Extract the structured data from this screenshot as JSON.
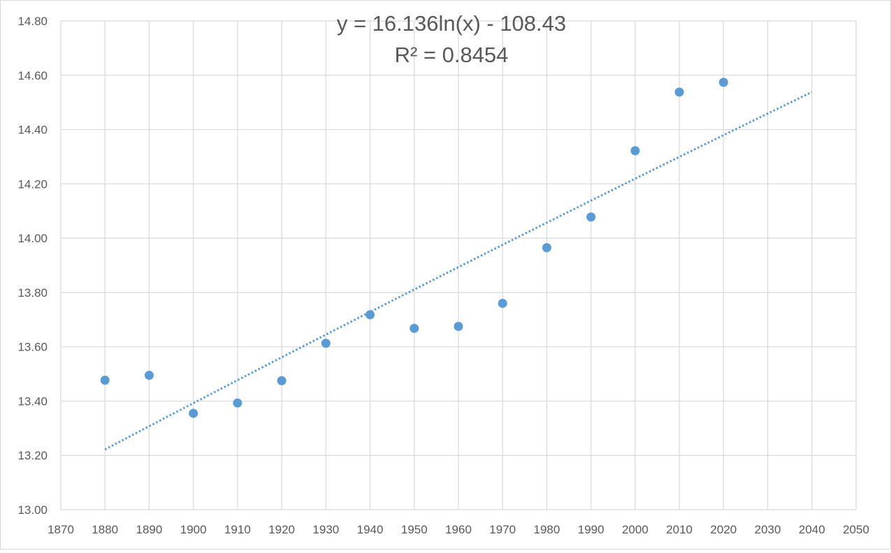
{
  "chart_data": {
    "type": "scatter",
    "title": "",
    "xlabel": "",
    "ylabel": "",
    "xlim": [
      1870,
      2050
    ],
    "ylim": [
      13.0,
      14.8
    ],
    "x_ticks": [
      1870,
      1880,
      1890,
      1900,
      1910,
      1920,
      1930,
      1940,
      1950,
      1960,
      1970,
      1980,
      1990,
      2000,
      2010,
      2020,
      2030,
      2040,
      2050
    ],
    "y_ticks": [
      13.0,
      13.2,
      13.4,
      13.6,
      13.8,
      14.0,
      14.2,
      14.4,
      14.6,
      14.8
    ],
    "y_tick_labels": [
      "13.00",
      "13.20",
      "13.40",
      "13.60",
      "13.80",
      "14.00",
      "14.20",
      "14.40",
      "14.60",
      "14.80"
    ],
    "grid": true,
    "series": [
      {
        "color": "#5B9BD5",
        "points": [
          {
            "x": 1880,
            "y": 13.477
          },
          {
            "x": 1890,
            "y": 13.495
          },
          {
            "x": 1900,
            "y": 13.355
          },
          {
            "x": 1910,
            "y": 13.393
          },
          {
            "x": 1920,
            "y": 13.475
          },
          {
            "x": 1930,
            "y": 13.613
          },
          {
            "x": 1940,
            "y": 13.718
          },
          {
            "x": 1950,
            "y": 13.668
          },
          {
            "x": 1960,
            "y": 13.675
          },
          {
            "x": 1970,
            "y": 13.76
          },
          {
            "x": 1980,
            "y": 13.965
          },
          {
            "x": 1990,
            "y": 14.078
          },
          {
            "x": 2000,
            "y": 14.322
          },
          {
            "x": 2010,
            "y": 14.538
          },
          {
            "x": 2020,
            "y": 14.574
          }
        ]
      }
    ],
    "trendline": {
      "type": "logarithmic",
      "x_start": 1880,
      "x_end": 2040,
      "color": "#5B9BD5",
      "style": "dotted",
      "equation": "y = 16.136ln(x) - 108.43",
      "r_squared": "R² = 0.8454"
    }
  }
}
